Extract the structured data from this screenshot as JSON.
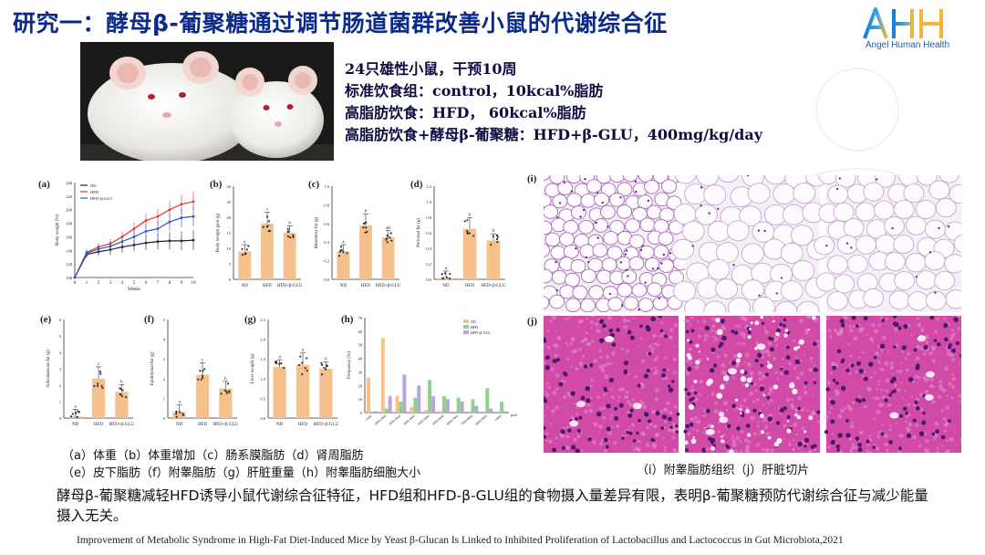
{
  "title": "研究一：酵母β-葡聚糖通过调节肠道菌群改善小鼠的代谢综合征",
  "logo": {
    "text": "AHH",
    "subtitle": "Angel Human Health"
  },
  "info": [
    "24只雄性小鼠，干预10周",
    "标准饮食组：control，10kcal%脂肪",
    "高脂肪饮食：HFD， 60kcal%脂肪",
    "高脂肪饮食+酵母β-葡聚糖：HFD+β-GLU，400mg/kg/day"
  ],
  "panels": {
    "a": {
      "label": "(a)",
      "ylabel": "Body weight (%)",
      "xlabel": "Weeks",
      "yticks": [
        "100",
        "120",
        "140",
        "160",
        "180",
        "200",
        "220",
        "240"
      ],
      "xticks": [
        "0",
        "1",
        "2",
        "3",
        "4",
        "5",
        "6",
        "7",
        "8",
        "9",
        "10"
      ],
      "legend": [
        "ND",
        "HFD",
        "HFD+β-GLU"
      ],
      "series": [
        {
          "name": "ND",
          "color": "#222222",
          "values": [
            100,
            134,
            138,
            141,
            145,
            148,
            151,
            153,
            154,
            154,
            155
          ]
        },
        {
          "name": "HFD",
          "color": "#e0392b",
          "values": [
            100,
            137,
            145,
            150,
            160,
            172,
            184,
            190,
            200,
            208,
            212
          ]
        },
        {
          "name": "HFD+β-GLU",
          "color": "#2e56c9",
          "values": [
            100,
            136,
            142,
            146,
            153,
            160,
            168,
            172,
            182,
            188,
            190
          ]
        }
      ]
    },
    "b": {
      "label": "(b)",
      "ylabel": "Body weight gain (g)",
      "cats": [
        "ND",
        "HFD",
        "HFD+β-GLU"
      ],
      "values": [
        9,
        18,
        15
      ],
      "yticks": [
        "0",
        "5",
        "10",
        "15",
        "20",
        "25",
        "30"
      ],
      "sig": [
        "a",
        "c",
        "b"
      ]
    },
    "c": {
      "label": "(c)",
      "ylabel": "Mesentery fat (g)",
      "cats": [
        "ND",
        "HFD",
        "HFD+β-GLU"
      ],
      "values": [
        0.3,
        0.58,
        0.45
      ],
      "yticks": [
        "0.0",
        "0.2",
        "0.4",
        "0.6",
        "0.8",
        "1.0"
      ],
      "sig": [
        "a",
        "b",
        "ab"
      ]
    },
    "d": {
      "label": "(d)",
      "ylabel": "Perirenal fat (g)",
      "cats": [
        "ND",
        "HFD",
        "HFD+β-GLU"
      ],
      "values": [
        0.02,
        0.65,
        0.5
      ],
      "yticks": [
        "0.0",
        "0.2",
        "0.4",
        "0.6",
        "0.8",
        "1.0",
        "1.2"
      ],
      "sig": [
        "a",
        "b",
        "b"
      ]
    },
    "e": {
      "label": "(e)",
      "ylabel": "Subcutaneous fat (g)",
      "cats": [
        "ND",
        "HFD",
        "HFD+β-GLU"
      ],
      "values": [
        0.1,
        2.4,
        1.6
      ],
      "yticks": [
        "0",
        "1",
        "2",
        "3",
        "4",
        "5",
        "6"
      ],
      "sig": [
        "a",
        "c",
        "b"
      ]
    },
    "f": {
      "label": "(f)",
      "ylabel": "Epididymal fat (g)",
      "cats": [
        "ND",
        "HFD",
        "HFD+β-GLU"
      ],
      "values": [
        0.3,
        2.2,
        1.5
      ],
      "yticks": [
        "0",
        "1",
        "2",
        "3",
        "4",
        "5"
      ],
      "sig": [
        "a",
        "c",
        "b"
      ]
    },
    "g": {
      "label": "(g)",
      "ylabel": "Liver weight (g)",
      "cats": [
        "ND",
        "HFD",
        "HFD+β-GLU"
      ],
      "values": [
        1.3,
        1.35,
        1.25
      ],
      "yticks": [
        "0.0",
        "0.5",
        "1.0",
        "1.5",
        "2.0",
        "2.5"
      ],
      "sig": [
        "a",
        "a",
        "a"
      ]
    },
    "h": {
      "label": "(h)",
      "ylabel": "Frequency (%)",
      "xunit": "μm²",
      "yticks": [
        "0",
        "10",
        "20",
        "30",
        "40",
        "50",
        "60",
        "70"
      ],
      "legend": [
        "ND",
        "HFD",
        "HFD+β-GLU"
      ],
      "categories": [
        "<1000",
        "1000-2000",
        "2000-3000",
        "3000-4000",
        "4000-5000",
        "5000-6000",
        "6000-7000",
        "7000-8000",
        "8000-9000",
        ">9000"
      ],
      "series": [
        {
          "name": "ND",
          "color": "#f6c08c",
          "values": [
            26,
            55,
            12,
            4,
            2,
            1,
            0,
            0,
            0,
            0
          ]
        },
        {
          "name": "HFD",
          "color": "#8fd18a",
          "values": [
            0,
            3,
            8,
            11,
            24,
            12,
            11,
            10,
            18,
            8
          ]
        },
        {
          "name": "HFD+β-GLU",
          "color": "#b9a3de",
          "values": [
            1,
            12,
            28,
            20,
            12,
            10,
            8,
            5,
            3,
            1
          ]
        }
      ]
    }
  },
  "histology": {
    "i_label": "(i)",
    "j_label": "(j)"
  },
  "captions": {
    "left_line1": "（a）体重（b）体重增加（c）肠系膜脂肪（d）肾周脂肪",
    "left_line2": "（e）皮下脂肪（f）附睾脂肪（g）肝脏重量（h）附睾脂肪细胞大小",
    "right": "（i）附睾脂肪组织（j）肝脏切片"
  },
  "conclusion": "酵母β-葡聚糖减轻HFD诱导小鼠代谢综合征特征，HFD组和HFD-β-GLU组的食物摄入量差异有限，表明β-葡聚糖预防代谢综合征与减少能量摄入无关。",
  "citation": "Improvement of Metabolic Syndrome in High-Fat Diet-Induced Mice by Yeast β-Glucan Is Linked to Inhibited Proliferation of Lactobacillus and Lactococcus in Gut Microbiota,2021",
  "colors": {
    "title": "#0a2a8c",
    "bar": "#f6c08c",
    "he_pink": "#d04aa6",
    "adipose": "#f6eef8"
  }
}
